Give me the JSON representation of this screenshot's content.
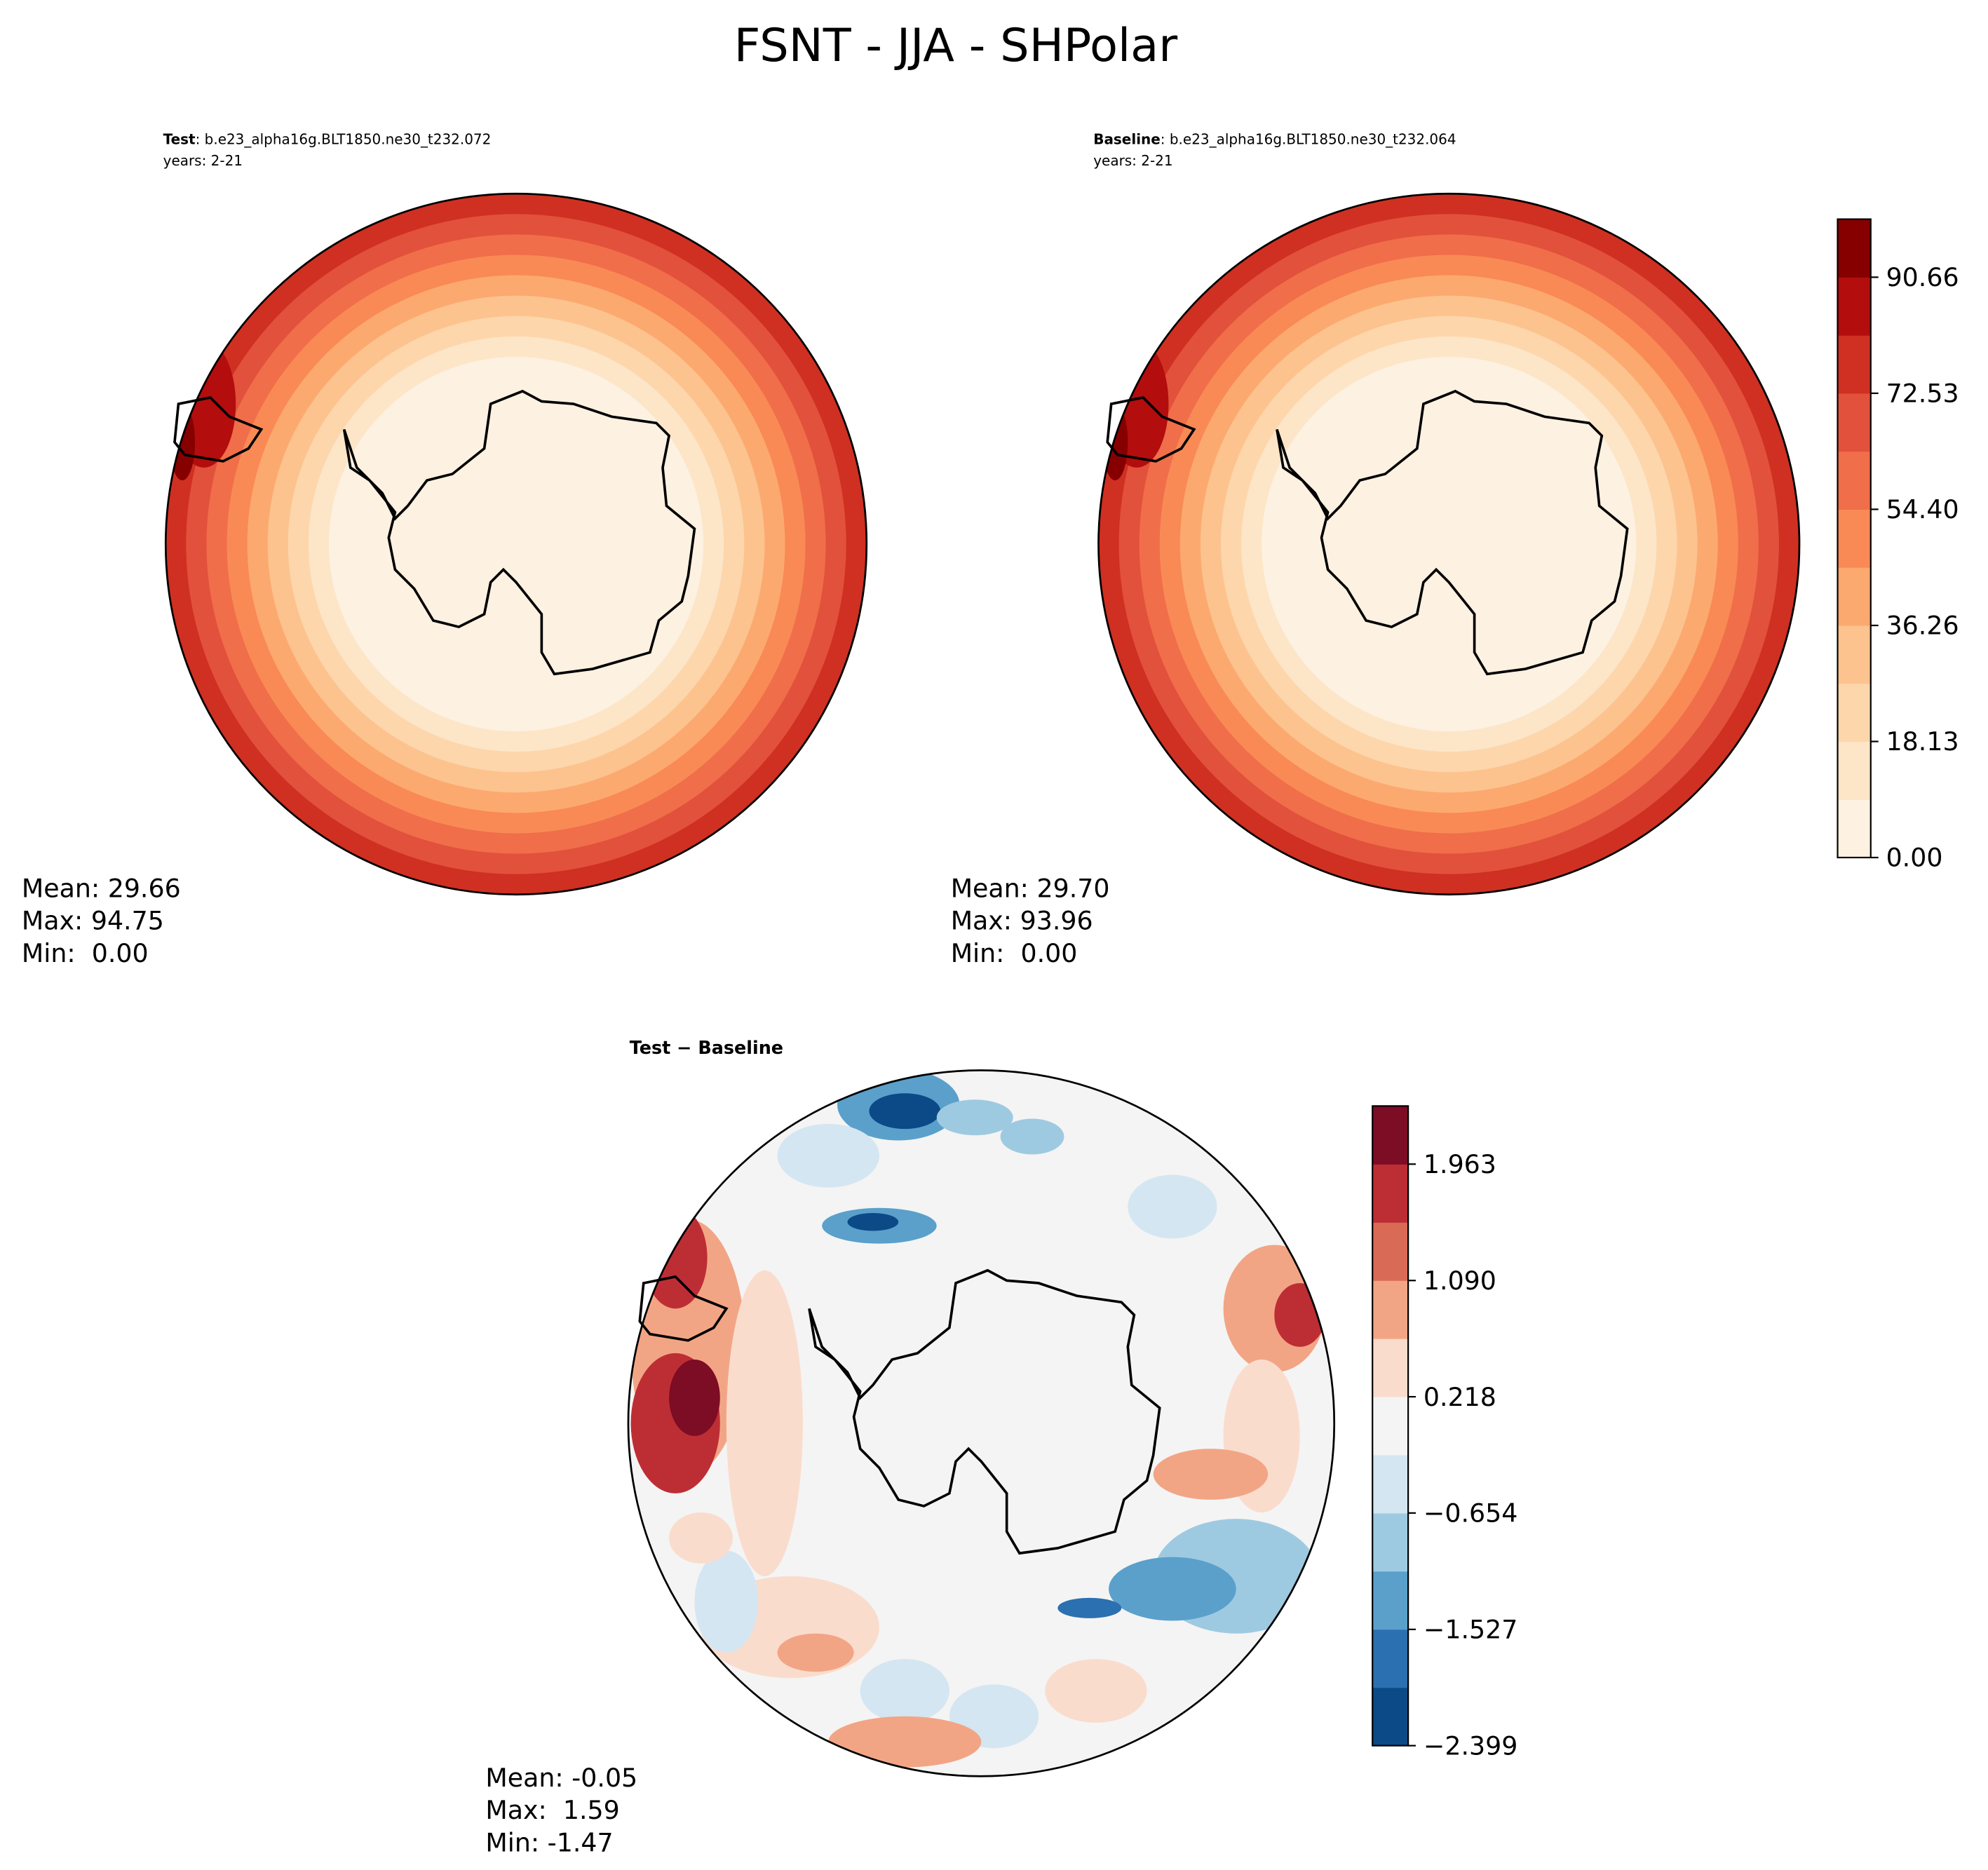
{
  "title": "FSNT - JJA - SHPolar",
  "chart_data": [
    {
      "type": "polar-contour",
      "name": "Test",
      "case": ": b.e23_alpha16g.BLT1850.ne30_t232.072",
      "years": "years: 2-21",
      "stats": [
        "Mean: 29.66",
        "Max: 94.75",
        "Min:  0.00"
      ]
    },
    {
      "type": "polar-contour",
      "name": "Baseline",
      "case": ": b.e23_alpha16g.BLT1850.ne30_t232.064",
      "years": "years: 2-21",
      "stats": [
        "Mean: 29.70",
        "Max: 93.96",
        "Min:  0.00"
      ],
      "colorbar": {
        "ylim": [
          0,
          99.73
        ],
        "yticks": [
          {
            "value": 0,
            "label": "0.00"
          },
          18.13,
          36.26,
          {
            "value": 54.4,
            "label": "54.40"
          },
          72.53,
          90.66
        ],
        "colors": [
          "#fdf1e1",
          "#fde5c8",
          "#fdd6ab",
          "#fcc38f",
          "#fca96f",
          "#f98a55",
          "#f06e4a",
          "#e2513b",
          "#cf3022",
          "#b30d0d",
          "#860000"
        ]
      }
    },
    {
      "type": "polar-contour",
      "name": "Test − Baseline",
      "stats": [
        "Mean: -0.05",
        "Max:  1.59",
        "Min: -1.47"
      ],
      "colorbar": {
        "ylim": [
          -2.399,
          2.399
        ],
        "yticks": [
          {
            "value": -2.399,
            "label": "−2.399"
          },
          {
            "value": -1.527,
            "label": "−1.527"
          },
          {
            "value": -0.654,
            "label": "−0.654"
          },
          0.218,
          {
            "value": 1.09,
            "label": "1.090"
          },
          1.963
        ],
        "colors": [
          "#0b4a87",
          "#2b70b0",
          "#5aa0cb",
          "#9ecae1",
          "#d4e6f1",
          "#f4f4f4",
          "#fadccd",
          "#f2a585",
          "#d96a56",
          "#bd2e34",
          "#7d0c25"
        ]
      }
    }
  ]
}
